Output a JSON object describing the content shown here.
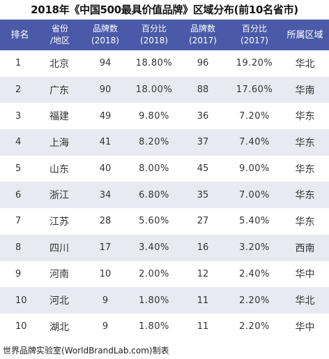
{
  "title": "2018年《中国500最具价值品牌》区域分布(前10名省市)",
  "headers": {
    "rank": "排名",
    "province_line1": "省份",
    "province_line2": "/地区",
    "brands2018_line1": "品牌数",
    "brands2018_line2": "(2018)",
    "pct2018_line1": "百分比",
    "pct2018_line2": "(2018)",
    "brands2017_line1": "品牌数",
    "brands2017_line2": "(2017)",
    "pct2017_line1": "百分比",
    "pct2017_line2": "(2017)",
    "region": "所属区域"
  },
  "rows": [
    {
      "rank": "1",
      "province": "北京",
      "brands2018": "94",
      "pct2018": "18.80%",
      "brands2017": "96",
      "pct2017": "19.20%",
      "region": "华北"
    },
    {
      "rank": "2",
      "province": "广东",
      "brands2018": "90",
      "pct2018": "18.00%",
      "brands2017": "88",
      "pct2017": "17.60%",
      "region": "华南"
    },
    {
      "rank": "3",
      "province": "福建",
      "brands2018": "49",
      "pct2018": "9.80%",
      "brands2017": "36",
      "pct2017": "7.20%",
      "region": "华东"
    },
    {
      "rank": "4",
      "province": "上海",
      "brands2018": "41",
      "pct2018": "8.20%",
      "brands2017": "37",
      "pct2017": "7.40%",
      "region": "华东"
    },
    {
      "rank": "5",
      "province": "山东",
      "brands2018": "40",
      "pct2018": "8.00%",
      "brands2017": "45",
      "pct2017": "9.00%",
      "region": "华东"
    },
    {
      "rank": "6",
      "province": "浙江",
      "brands2018": "34",
      "pct2018": "6.80%",
      "brands2017": "35",
      "pct2017": "7.00%",
      "region": "华东"
    },
    {
      "rank": "7",
      "province": "江苏",
      "brands2018": "28",
      "pct2018": "5.60%",
      "brands2017": "27",
      "pct2017": "5.40%",
      "region": "华东"
    },
    {
      "rank": "8",
      "province": "四川",
      "brands2018": "17",
      "pct2018": "3.40%",
      "brands2017": "16",
      "pct2017": "3.20%",
      "region": "西南"
    },
    {
      "rank": "9",
      "province": "河南",
      "brands2018": "10",
      "pct2018": "2.00%",
      "brands2017": "12",
      "pct2017": "2.40%",
      "region": "华中"
    },
    {
      "rank": "10",
      "province": "河北",
      "brands2018": "9",
      "pct2018": "1.80%",
      "brands2017": "11",
      "pct2017": "2.20%",
      "region": "华北"
    },
    {
      "rank": "10",
      "province": "湖北",
      "brands2018": "9",
      "pct2018": "1.80%",
      "brands2017": "11",
      "pct2017": "2.20%",
      "region": "华中"
    }
  ],
  "footer": "世界品牌实验室(WorldBrandLab.com)制表",
  "colors": {
    "header_bg": "#4a5aa8",
    "header_text": "#ffffff",
    "stripe_bg": "#e9eaf1"
  }
}
